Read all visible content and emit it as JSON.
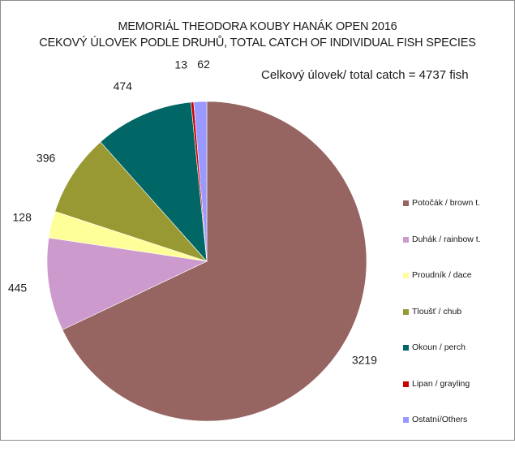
{
  "chart_data": {
    "type": "pie",
    "title": "MEMORIÁL THEODORA KOUBY HANÁK OPEN 2016",
    "subtitle": "CEKOVÝ ÚLOVEK PODLE DRUHŮ, TOTAL CATCH OF INDIVIDUAL FISH SPECIES",
    "annotation": "Celkový úlovek/ total catch = 4737 fish",
    "legend_position": "right",
    "slices": [
      {
        "label": "Potočák / brown t.",
        "value": 3219,
        "color": "#966461"
      },
      {
        "label": "Duhák / rainbow t.",
        "value": 445,
        "color": "#cc9acc"
      },
      {
        "label": "Proudník / dace",
        "value": 128,
        "color": "#ffff99"
      },
      {
        "label": "Tloušť / chub",
        "value": 396,
        "color": "#999933"
      },
      {
        "label": "Okoun / perch",
        "value": 474,
        "color": "#006666"
      },
      {
        "label": "Lipan / grayling",
        "value": 13,
        "color": "#cc0000"
      },
      {
        "label": "Ostatní/Others",
        "value": 62,
        "color": "#9999ff"
      }
    ]
  }
}
